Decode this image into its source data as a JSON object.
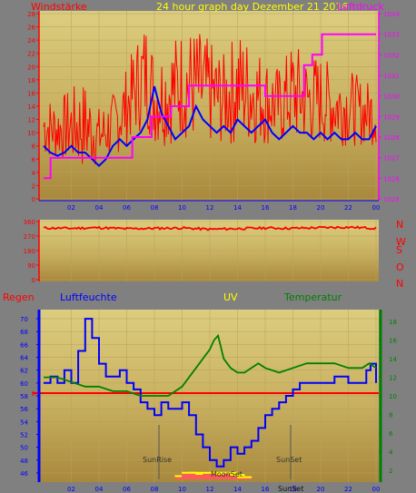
{
  "colors": {
    "background": "#808080",
    "plot_top": "#d8c878",
    "plot_bottom": "#a88c40",
    "wind": "#ff0000",
    "wind_avg": "#0000ff",
    "pressure": "#ff00ff",
    "direction": "#ff0000",
    "humidity": "#0000ff",
    "temperature": "#008000",
    "rain": "#ff0000",
    "uv": "#ffff00",
    "title_yellow": "#ffff00",
    "label_red": "#ff0000",
    "label_blue": "#0000ff",
    "label_green": "#008000",
    "label_magenta": "#ff00ff"
  },
  "header": {
    "wind_label": "Windstärke",
    "title": "24 hour graph day   Dezember 21 2016",
    "pressure_label": "Luftdruck"
  },
  "direction_letters": [
    "N",
    "W",
    "S",
    "O",
    "N"
  ],
  "bottom_header": {
    "rain_label": "Regen",
    "humidity_label": "Luftfeuchte",
    "uv_label": "UV",
    "temp_label": "Temperatur"
  },
  "markers": {
    "sunrise": "SunRise",
    "sunset": "SunSet",
    "moonset": "MoonSet",
    "sunset_bottom": "SunSet"
  },
  "chart_data": [
    {
      "type": "line",
      "title": "24 hour graph day   Dezember 21 2016",
      "x_ticks": [
        "02",
        "04",
        "06",
        "08",
        "10",
        "12",
        "14",
        "16",
        "18",
        "20",
        "22",
        "00"
      ],
      "y_left_label": "Windstärke",
      "y_left_ticks": [
        0,
        2,
        4,
        6,
        8,
        10,
        12,
        14,
        16,
        18,
        20,
        22,
        24,
        26,
        28
      ],
      "y_left_lim": [
        0,
        28
      ],
      "y_right_label": "Luftdruck",
      "y_right_ticks": [
        1025,
        1026,
        1027,
        1028,
        1029,
        1030,
        1031,
        1032,
        1033,
        1034
      ],
      "y_right_lim": [
        1025,
        1034
      ],
      "series": [
        {
          "name": "Windstärke",
          "axis": "left",
          "x_hours": [
            0,
            1,
            2,
            3,
            4,
            5,
            6,
            7,
            7.5,
            8,
            9,
            10,
            11,
            12,
            13,
            14,
            15,
            16,
            17,
            18,
            19,
            20,
            21,
            22,
            23,
            24
          ],
          "gust_max": [
            16,
            15,
            17,
            18,
            14,
            16,
            20,
            26,
            28,
            22,
            24,
            26,
            26,
            24,
            22,
            26,
            24,
            22,
            20,
            24,
            22,
            22,
            20,
            20,
            18,
            18
          ],
          "gust_min": [
            6,
            6,
            5,
            4,
            5,
            6,
            8,
            10,
            10,
            8,
            8,
            9,
            8,
            8,
            8,
            8,
            8,
            8,
            8,
            8,
            8,
            8,
            8,
            8,
            8,
            8
          ]
        },
        {
          "name": "Windstärke avg",
          "axis": "left",
          "x_hours": [
            0,
            0.5,
            1,
            1.5,
            2,
            2.5,
            3,
            3.5,
            4,
            4.5,
            5,
            5.5,
            6,
            6.5,
            7,
            7.5,
            8,
            8.5,
            9,
            9.5,
            10,
            10.5,
            11,
            11.5,
            12,
            12.5,
            13,
            13.5,
            14,
            14.5,
            15,
            15.5,
            16,
            16.5,
            17,
            17.5,
            18,
            18.5,
            19,
            19.5,
            20,
            20.5,
            21,
            21.5,
            22,
            22.5,
            23,
            23.5,
            24
          ],
          "values": [
            8,
            7,
            6.5,
            7,
            8,
            7,
            7,
            6,
            5,
            6,
            8,
            9,
            8,
            9,
            10,
            12,
            17,
            13,
            11,
            9,
            10,
            11,
            14,
            12,
            11,
            10,
            11,
            10,
            12,
            11,
            10,
            11,
            12,
            10,
            9,
            10,
            11,
            10,
            10,
            9,
            10,
            9,
            10,
            9,
            9,
            10,
            9,
            9,
            11
          ]
        },
        {
          "name": "Luftdruck",
          "axis": "right",
          "x_hours": [
            0,
            0.5,
            0.5,
            3.3,
            3.3,
            6.4,
            6.4,
            7.8,
            7.8,
            9.2,
            9.2,
            10.5,
            10.5,
            13.8,
            13.8,
            16.0,
            16.0,
            18.8,
            18.8,
            19.4,
            19.4,
            20.1,
            20.1,
            24
          ],
          "values": [
            1026,
            1026,
            1027,
            1027,
            1027,
            1027,
            1028,
            1028,
            1029,
            1029,
            1029.5,
            1029.5,
            1030.5,
            1030.5,
            1030.5,
            1030.5,
            1030,
            1030,
            1031.5,
            1031.5,
            1032,
            1032,
            1033,
            1033
          ]
        }
      ]
    },
    {
      "type": "line",
      "y_ticks": [
        0,
        90,
        180,
        270,
        360
      ],
      "y_lim": [
        0,
        360
      ],
      "series": [
        {
          "name": "Windrichtung",
          "x_hours": [
            0,
            2,
            4,
            6,
            8,
            10,
            12,
            14,
            16,
            18,
            20,
            22,
            24
          ],
          "values": [
            320,
            318,
            322,
            315,
            318,
            320,
            312,
            316,
            320,
            318,
            322,
            325,
            318
          ]
        }
      ]
    },
    {
      "type": "line",
      "x_ticks": [
        "02",
        "04",
        "06",
        "08",
        "10",
        "12",
        "14",
        "16",
        "18",
        "20",
        "22",
        "00"
      ],
      "y_left_label": "Luftfeuchte",
      "y_left_ticks": [
        46,
        48,
        50,
        52,
        54,
        56,
        58,
        60,
        62,
        64,
        66,
        68,
        70
      ],
      "y_left_lim": [
        45,
        71
      ],
      "y_right_label": "Temperatur",
      "y_right_ticks": [
        2,
        4,
        6,
        8,
        10,
        12,
        14,
        16,
        18
      ],
      "y_right_lim": [
        1,
        19
      ],
      "rain_label": "Regen",
      "rain_value": 0,
      "uv_label": "UV",
      "series": [
        {
          "name": "Luftfeuchte",
          "axis": "left",
          "x_hours": [
            0,
            0.5,
            1,
            1.5,
            2,
            2.5,
            3,
            3.5,
            4,
            4.5,
            5,
            5.5,
            6,
            6.5,
            7,
            7.5,
            8,
            8.5,
            9,
            9.5,
            10,
            10.5,
            11,
            11.5,
            12,
            12.5,
            13,
            13.5,
            14,
            14.5,
            15,
            15.5,
            16,
            16.5,
            17,
            17.5,
            18,
            18.5,
            19,
            19.5,
            20,
            20.5,
            21,
            21.5,
            22,
            22.5,
            23,
            23.3,
            23.6,
            24
          ],
          "values": [
            60,
            61,
            60,
            62,
            60,
            65,
            70,
            67,
            63,
            61,
            61,
            62,
            60,
            59,
            57,
            56,
            55,
            57,
            56,
            56,
            57,
            55,
            52,
            50,
            48,
            47,
            48,
            50,
            49,
            50,
            51,
            53,
            55,
            56,
            57,
            58,
            59,
            60,
            60,
            60,
            60,
            60,
            61,
            61,
            60,
            60,
            60,
            62,
            63,
            60
          ]
        },
        {
          "name": "Temperatur",
          "axis": "right",
          "x_hours": [
            0,
            1,
            2,
            3,
            4,
            5,
            6,
            7,
            8,
            9,
            9.5,
            10,
            10.5,
            11,
            11.5,
            12,
            12.3,
            12.6,
            13,
            13.5,
            14,
            14.5,
            15,
            15.5,
            16,
            17,
            18,
            19,
            20,
            21,
            22,
            23,
            23.5,
            24
          ],
          "values": [
            12,
            12,
            11.5,
            11,
            11,
            10.5,
            10.5,
            10,
            10,
            10,
            10.5,
            11,
            12,
            13,
            14,
            15,
            16,
            16.5,
            14,
            13,
            12.5,
            12.5,
            13,
            13.5,
            13,
            12.5,
            13,
            13.5,
            13.5,
            13.5,
            13,
            13,
            13.5,
            13
          ]
        },
        {
          "name": "UV",
          "x_hours": [
            10.0,
            10.5,
            11.0,
            11.5,
            12.0,
            12.5,
            13.0,
            13.5,
            14.0,
            14.5
          ],
          "values": [
            0.3,
            0.6,
            0.6,
            0.5,
            0.6,
            0.6,
            0.5,
            0.6,
            0.4,
            0.2
          ]
        }
      ]
    }
  ]
}
